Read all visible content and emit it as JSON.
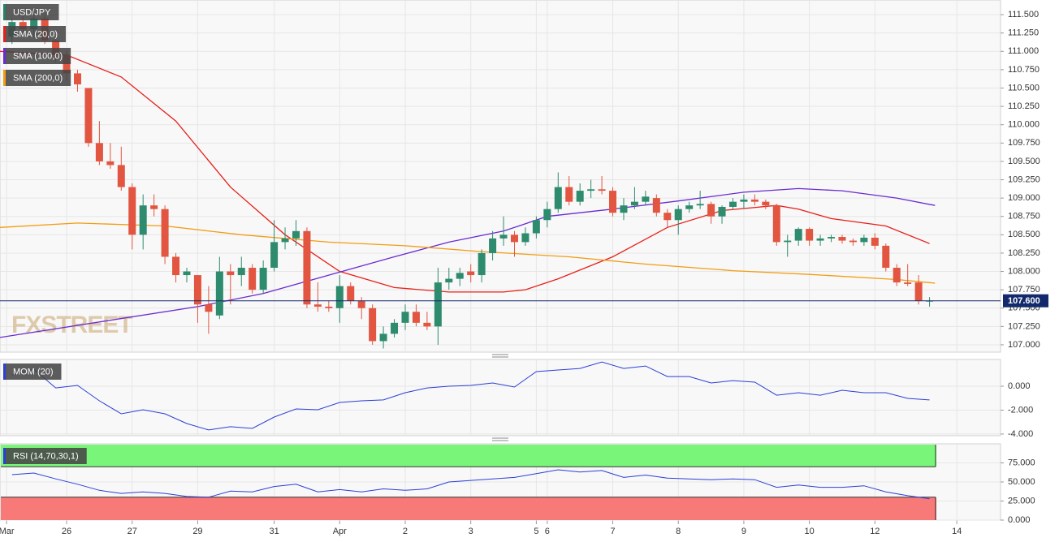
{
  "chart_data": [
    {
      "type": "candlestick",
      "title": "USD/JPY",
      "title_color": "#26806a",
      "watermark": "FXSTREET",
      "x": [
        0,
        1,
        2,
        3,
        4,
        5,
        6,
        7,
        8,
        9,
        10,
        11,
        12,
        13,
        14,
        15,
        16,
        17,
        18,
        19,
        20,
        21,
        22,
        23,
        24,
        25,
        26,
        27,
        28,
        29,
        30,
        31,
        32,
        33,
        34,
        35,
        36,
        37,
        38,
        39,
        40,
        41,
        42,
        43,
        44,
        45,
        46,
        47,
        48,
        49,
        50,
        51,
        52,
        53,
        54,
        55,
        56,
        57,
        58,
        59,
        60,
        61,
        62,
        63,
        64,
        65,
        66,
        67,
        68,
        69,
        70,
        71,
        72,
        73,
        74,
        75,
        76,
        77,
        78,
        79,
        80,
        81,
        82,
        83,
        84
      ],
      "open": [
        111.2,
        111.4,
        111.3,
        111.45,
        111.15,
        110.95,
        110.7,
        110.5,
        109.75,
        109.5,
        109.45,
        109.15,
        108.5,
        108.9,
        108.85,
        108.2,
        107.95,
        107.95,
        107.55,
        107.4,
        108.0,
        107.95,
        108.05,
        107.75,
        108.05,
        108.4,
        108.45,
        108.55,
        107.55,
        107.52,
        107.5,
        107.8,
        107.6,
        107.5,
        107.05,
        107.15,
        107.3,
        107.45,
        107.3,
        107.25,
        107.85,
        107.9,
        108.0,
        107.95,
        108.25,
        108.45,
        108.5,
        108.4,
        108.52,
        108.7,
        108.85,
        109.15,
        108.95,
        109.1,
        109.12,
        109.1,
        108.8,
        108.9,
        108.95,
        109.0,
        108.8,
        108.7,
        108.85,
        108.9,
        108.92,
        108.75,
        108.88,
        108.95,
        108.98,
        108.95,
        108.9,
        108.4,
        108.42,
        108.58,
        108.42,
        108.45,
        108.47,
        108.42,
        108.4,
        108.46,
        108.35,
        108.05,
        107.85,
        107.85,
        107.6
      ],
      "high": [
        111.45,
        111.5,
        111.55,
        111.5,
        111.2,
        111.0,
        110.75,
        110.5,
        110.05,
        109.75,
        109.7,
        109.2,
        109.05,
        109.05,
        108.9,
        108.25,
        108.05,
        107.95,
        107.8,
        108.2,
        108.1,
        108.2,
        108.1,
        108.15,
        108.7,
        108.6,
        108.7,
        108.6,
        107.85,
        107.6,
        107.95,
        107.85,
        107.65,
        107.55,
        107.25,
        107.35,
        107.55,
        107.55,
        107.45,
        108.05,
        108.05,
        108.05,
        108.1,
        108.3,
        108.55,
        108.75,
        108.55,
        108.6,
        108.75,
        108.95,
        109.35,
        109.3,
        109.2,
        109.25,
        109.3,
        109.15,
        109.0,
        109.15,
        109.1,
        109.05,
        108.85,
        108.9,
        108.95,
        109.1,
        108.95,
        108.9,
        109.0,
        109.05,
        109.05,
        108.98,
        108.92,
        108.5,
        108.6,
        108.6,
        108.5,
        108.5,
        108.5,
        108.45,
        108.5,
        108.52,
        108.38,
        108.1,
        108.1,
        107.95,
        107.65
      ],
      "low": [
        111.1,
        111.25,
        111.2,
        111.1,
        110.85,
        110.6,
        110.45,
        109.7,
        109.45,
        109.4,
        109.1,
        108.3,
        108.3,
        108.75,
        108.1,
        107.85,
        107.85,
        107.3,
        107.15,
        107.35,
        107.55,
        107.8,
        107.7,
        107.7,
        108.0,
        108.3,
        108.35,
        107.5,
        107.45,
        107.45,
        107.3,
        107.55,
        107.35,
        107.0,
        106.95,
        107.1,
        107.2,
        107.25,
        107.2,
        107.0,
        107.75,
        107.8,
        107.85,
        107.85,
        108.15,
        108.35,
        108.2,
        108.35,
        108.45,
        108.6,
        108.8,
        108.9,
        108.9,
        109.0,
        109.05,
        108.75,
        108.7,
        108.85,
        108.9,
        108.75,
        108.6,
        108.5,
        108.8,
        108.85,
        108.65,
        108.65,
        108.85,
        108.85,
        108.9,
        108.85,
        108.35,
        108.2,
        108.35,
        108.35,
        108.35,
        108.4,
        108.38,
        108.35,
        108.35,
        108.3,
        108.0,
        107.8,
        107.8,
        107.55,
        107.52
      ],
      "close": [
        111.4,
        111.3,
        111.45,
        111.15,
        110.95,
        110.7,
        110.55,
        109.75,
        109.5,
        109.45,
        109.15,
        108.5,
        108.9,
        108.85,
        108.2,
        107.95,
        108.0,
        107.55,
        107.45,
        108.0,
        107.95,
        108.05,
        107.75,
        108.05,
        108.4,
        108.45,
        108.55,
        107.55,
        107.52,
        107.5,
        107.8,
        107.6,
        107.5,
        107.05,
        107.15,
        107.3,
        107.45,
        107.3,
        107.25,
        107.85,
        107.9,
        107.98,
        107.95,
        108.25,
        108.45,
        108.5,
        108.4,
        108.52,
        108.7,
        108.85,
        109.15,
        108.95,
        109.1,
        109.12,
        109.1,
        108.8,
        108.9,
        108.95,
        109.02,
        108.8,
        108.7,
        108.85,
        108.9,
        108.92,
        108.75,
        108.88,
        108.95,
        108.98,
        108.95,
        108.9,
        108.4,
        108.42,
        108.58,
        108.42,
        108.45,
        108.47,
        108.42,
        108.4,
        108.46,
        108.35,
        108.05,
        107.85,
        107.83,
        107.6,
        107.6
      ],
      "up_color": "#2e8b6e",
      "down_color": "#e25541",
      "overlays": [
        {
          "name": "SMA (20,0)",
          "color": "#e8201a",
          "x": [
            -1.1,
            5,
            10,
            15,
            20,
            25,
            30,
            35,
            40,
            45,
            47,
            50,
            55,
            60,
            65,
            70,
            72,
            75,
            80,
            84
          ],
          "values": [
            111.0,
            110.95,
            110.65,
            110.05,
            109.15,
            108.5,
            108.0,
            107.78,
            107.72,
            107.72,
            107.75,
            107.9,
            108.2,
            108.6,
            108.83,
            108.9,
            108.85,
            108.72,
            108.62,
            108.38
          ]
        },
        {
          "name": "SMA (100,0)",
          "color": "#6a2bd1",
          "x": [
            -1.1,
            17,
            23,
            29,
            35,
            40,
            45,
            49,
            55,
            61,
            67,
            72,
            76,
            81,
            84.5
          ],
          "values": [
            107.1,
            107.52,
            107.7,
            107.95,
            108.2,
            108.4,
            108.55,
            108.75,
            108.85,
            108.96,
            109.08,
            109.13,
            109.1,
            109.0,
            108.9
          ]
        },
        {
          "name": "SMA (200,0)",
          "color": "#f39c12",
          "x": [
            -1.1,
            6,
            14,
            21,
            29,
            36,
            43,
            51,
            58,
            66,
            73,
            81,
            84.5
          ],
          "values": [
            108.6,
            108.66,
            108.62,
            108.5,
            108.4,
            108.35,
            108.27,
            108.2,
            108.1,
            108.01,
            107.96,
            107.89,
            107.84
          ]
        }
      ],
      "last_price": {
        "value": 107.6,
        "label": "107.600"
      },
      "last_price_color": "#13296b",
      "xlim": [
        -1.1,
        90.5
      ],
      "ylim": [
        106.9,
        111.7
      ],
      "yticks": [
        {
          "value": 107,
          "label": "107.000"
        },
        {
          "value": 107.25,
          "label": "107.250"
        },
        {
          "value": 107.5,
          "label": "107.500"
        },
        {
          "value": 107.75,
          "label": "107.750"
        },
        {
          "value": 108,
          "label": "108.000"
        },
        {
          "value": 108.25,
          "label": "108.250"
        },
        {
          "value": 108.5,
          "label": "108.500"
        },
        {
          "value": 108.75,
          "label": "108.750"
        },
        {
          "value": 109,
          "label": "109.000"
        },
        {
          "value": 109.25,
          "label": "109.250"
        },
        {
          "value": 109.5,
          "label": "109.500"
        },
        {
          "value": 109.75,
          "label": "109.750"
        },
        {
          "value": 110,
          "label": "110.000"
        },
        {
          "value": 110.25,
          "label": "110.250"
        },
        {
          "value": 110.5,
          "label": "110.500"
        },
        {
          "value": 110.75,
          "label": "110.750"
        },
        {
          "value": 111,
          "label": "111.000"
        },
        {
          "value": 111.25,
          "label": "111.250"
        },
        {
          "value": 111.5,
          "label": "111.500"
        }
      ],
      "xticks": [
        {
          "value": -0.5,
          "label": "Mar"
        },
        {
          "value": 5,
          "label": "26"
        },
        {
          "value": 11,
          "label": "27"
        },
        {
          "value": 17,
          "label": "29"
        },
        {
          "value": 24,
          "label": "31"
        },
        {
          "value": 30,
          "label": "Apr"
        },
        {
          "value": 36,
          "label": "2"
        },
        {
          "value": 42,
          "label": "3"
        },
        {
          "value": 48,
          "label": "5"
        },
        {
          "value": 49,
          "label": "6"
        },
        {
          "value": 55,
          "label": "7"
        },
        {
          "value": 61,
          "label": "8"
        },
        {
          "value": 67,
          "label": "9"
        },
        {
          "value": 73,
          "label": "10"
        },
        {
          "value": 79,
          "label": "12"
        },
        {
          "value": 86.5,
          "label": "14"
        }
      ],
      "grid": true
    },
    {
      "type": "line",
      "title": "MOM (20)",
      "color": "#2a3fd6",
      "x": [
        0,
        2,
        4,
        6,
        8,
        10,
        12,
        14,
        16,
        18,
        20,
        22,
        24,
        26,
        28,
        30,
        32,
        34,
        36,
        38,
        40,
        42,
        44,
        46,
        48,
        50,
        52,
        54,
        56,
        58,
        60,
        62,
        64,
        66,
        68,
        70,
        72,
        74,
        76,
        78,
        80,
        82,
        84
      ],
      "values": [
        0.95,
        1.42,
        -0.14,
        0.07,
        -1.22,
        -2.31,
        -1.97,
        -2.31,
        -3.12,
        -3.66,
        -3.39,
        -3.53,
        -2.58,
        -1.9,
        -1.97,
        -1.36,
        -1.22,
        -1.15,
        -0.54,
        -0.14,
        0.0,
        0.07,
        0.27,
        -0.07,
        1.22,
        1.36,
        1.49,
        2.03,
        1.49,
        1.69,
        0.81,
        0.81,
        0.27,
        0.47,
        0.34,
        -0.75,
        -0.54,
        -0.75,
        -0.34,
        -0.54,
        -0.54,
        -1.02,
        -1.15
      ],
      "ylim": [
        -4.14,
        2.24
      ],
      "yticks": [
        {
          "value": 0,
          "label": "0.000"
        },
        {
          "value": -2,
          "label": "-2.000"
        },
        {
          "value": -4,
          "label": "-4.000"
        }
      ]
    },
    {
      "type": "line",
      "title": "RSI (14,70,30,1)",
      "color": "#2a3fd6",
      "x": [
        0,
        2,
        4,
        6,
        8,
        10,
        12,
        14,
        16,
        18,
        20,
        22,
        24,
        26,
        28,
        30,
        32,
        34,
        36,
        38,
        40,
        42,
        44,
        46,
        48,
        50,
        52,
        54,
        56,
        58,
        60,
        62,
        64,
        66,
        68,
        70,
        72,
        74,
        76,
        78,
        80,
        82,
        84
      ],
      "values": [
        59.6,
        61.7,
        54,
        47,
        39,
        35,
        37,
        35,
        31,
        30,
        38,
        37,
        44,
        47,
        37,
        40,
        37,
        41,
        39,
        41,
        50,
        52,
        54,
        56,
        61,
        66,
        63,
        65,
        56,
        59,
        55,
        54,
        53,
        54,
        53,
        43,
        46,
        43,
        43,
        45,
        37,
        32,
        28
      ],
      "overbought": 70,
      "oversold": 30,
      "overbought_color": "#79f579",
      "oversold_color": "#f87a78",
      "ylim": [
        0,
        100
      ],
      "yticks": [
        {
          "value": 0,
          "label": "0.000"
        },
        {
          "value": 25,
          "label": "25.000"
        },
        {
          "value": 50,
          "label": "50.000"
        },
        {
          "value": 75,
          "label": "75.000"
        }
      ]
    }
  ]
}
